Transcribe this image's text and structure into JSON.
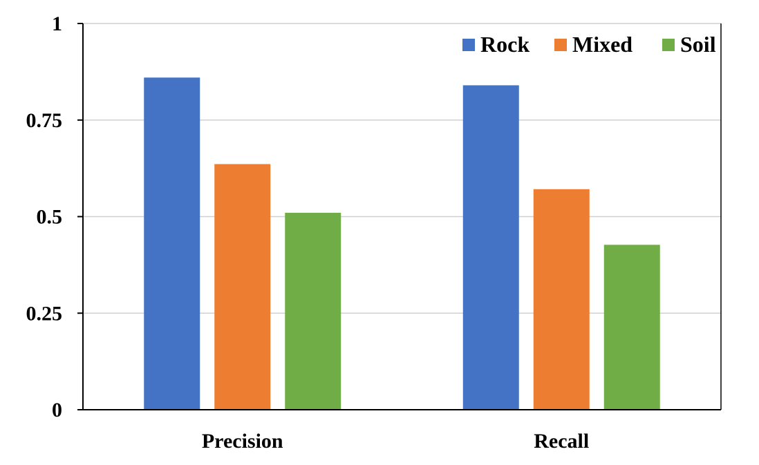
{
  "chart_data": {
    "type": "bar",
    "categories": [
      "Precision",
      "Recall"
    ],
    "series": [
      {
        "name": "Rock",
        "color": "#4472C4",
        "values": [
          0.86,
          0.84
        ]
      },
      {
        "name": "Mixed",
        "color": "#ED7D31",
        "values": [
          0.636,
          0.571
        ]
      },
      {
        "name": "Soil",
        "color": "#70AD47",
        "values": [
          0.51,
          0.427
        ]
      }
    ],
    "ylim": [
      0,
      1
    ],
    "yticks": [
      0,
      0.25,
      0.5,
      0.75,
      1
    ],
    "ytick_labels": [
      "0",
      "0.25",
      "0.5",
      "0.75",
      "1"
    ],
    "grid": true,
    "legend": "top-right",
    "title": "",
    "xlabel": "",
    "ylabel": ""
  }
}
